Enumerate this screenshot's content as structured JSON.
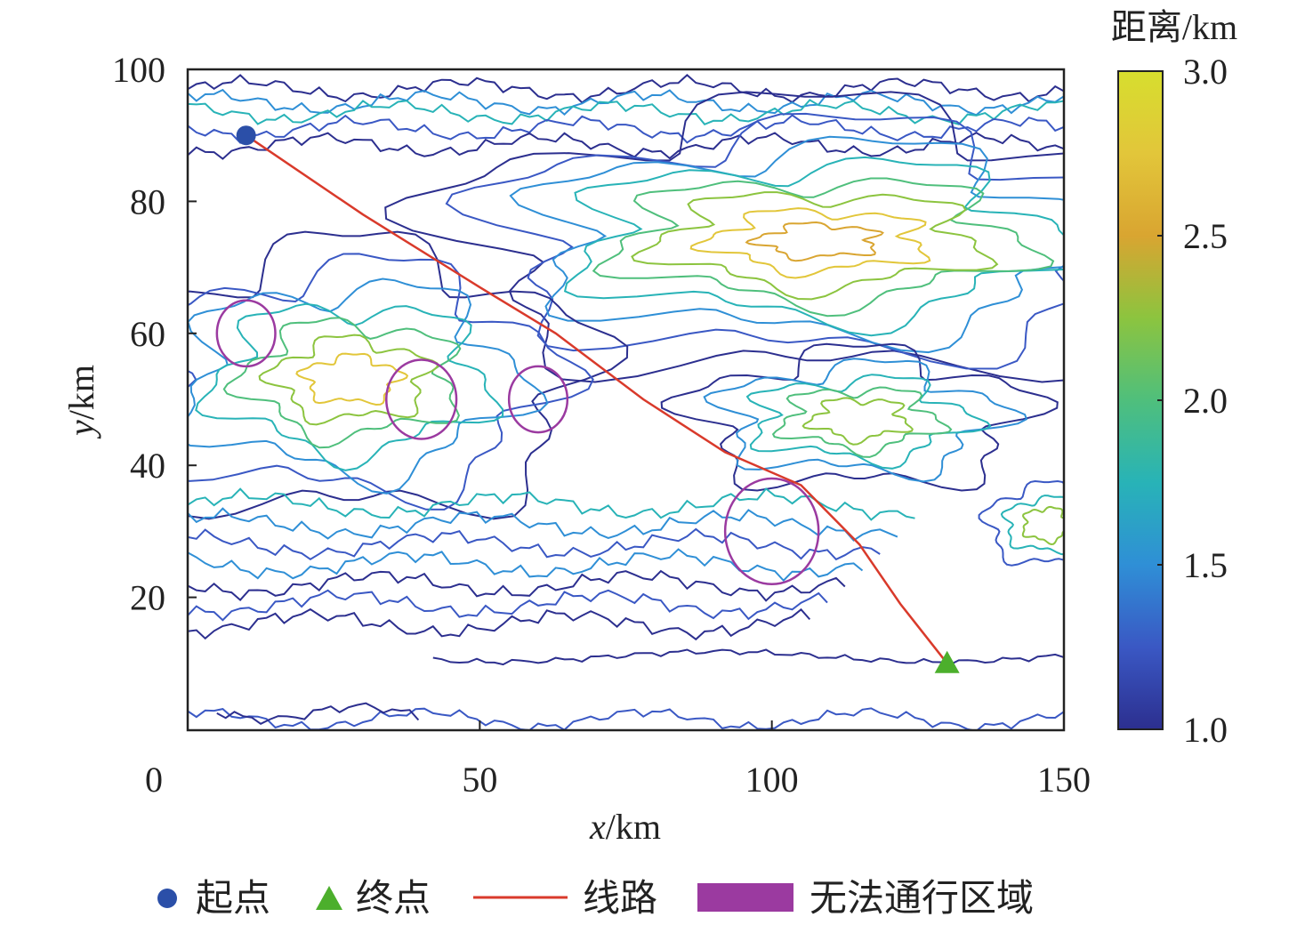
{
  "chart_data": {
    "type": "line",
    "x_label_prefix": "x",
    "x_label_suffix": "/km",
    "y_label_prefix": "y",
    "y_label_suffix": "/km",
    "xlim": [
      0,
      150
    ],
    "ylim": [
      0,
      100
    ],
    "x_ticks": [
      0,
      50,
      100,
      150
    ],
    "y_ticks": [
      20,
      40,
      60,
      80,
      100
    ],
    "x_tick_labels": [
      "0",
      "50",
      "100",
      "150"
    ],
    "y_tick_labels": [
      "20",
      "40",
      "60",
      "80",
      "100"
    ],
    "grid": false,
    "colorbar": {
      "title": "距离/km",
      "range": [
        1.0,
        3.0
      ],
      "ticks": [
        1.0,
        1.5,
        2.0,
        2.5,
        3.0
      ],
      "tick_labels": [
        "1.0",
        "1.5",
        "2.0",
        "2.5",
        "3.0"
      ],
      "colors": [
        "#2c2f8f",
        "#3a58c4",
        "#2f8fd6",
        "#28b3b7",
        "#4fbf7c",
        "#8cc43f",
        "#d9a531",
        "#e2c63a",
        "#d7de2e"
      ]
    },
    "start_point": {
      "label": "起点",
      "x": 10,
      "y": 90,
      "color": "#2b4fa8"
    },
    "end_point": {
      "label": "终点",
      "x": 130,
      "y": 10,
      "color": "#4caf2c"
    },
    "route": {
      "label": "线路",
      "color": "#d93a2b",
      "points": [
        [
          10,
          90
        ],
        [
          30,
          78
        ],
        [
          50,
          67
        ],
        [
          63,
          60
        ],
        [
          78,
          50
        ],
        [
          92,
          42
        ],
        [
          105,
          37
        ],
        [
          115,
          28
        ],
        [
          122,
          19
        ],
        [
          130,
          10
        ]
      ]
    },
    "no_pass_zones": {
      "label": "无法通行区域",
      "color": "#9b3aa0",
      "zones": [
        {
          "cx": 10,
          "cy": 60,
          "rx": 5,
          "ry": 5
        },
        {
          "cx": 40,
          "cy": 50,
          "rx": 6,
          "ry": 6
        },
        {
          "cx": 60,
          "cy": 50,
          "rx": 5,
          "ry": 5
        },
        {
          "cx": 100,
          "cy": 30,
          "rx": 8,
          "ry": 8
        }
      ]
    },
    "contour_levels": [
      {
        "level": 1.0,
        "color": "#2c2f8f"
      },
      {
        "level": 1.25,
        "color": "#3a58c4"
      },
      {
        "level": 1.5,
        "color": "#2f8fd6"
      },
      {
        "level": 1.75,
        "color": "#28b3b7"
      },
      {
        "level": 2.0,
        "color": "#4fbf7c"
      },
      {
        "level": 2.25,
        "color": "#8cc43f"
      },
      {
        "level": 2.5,
        "color": "#e2c63a"
      },
      {
        "level": 2.75,
        "color": "#d9a531"
      }
    ]
  }
}
